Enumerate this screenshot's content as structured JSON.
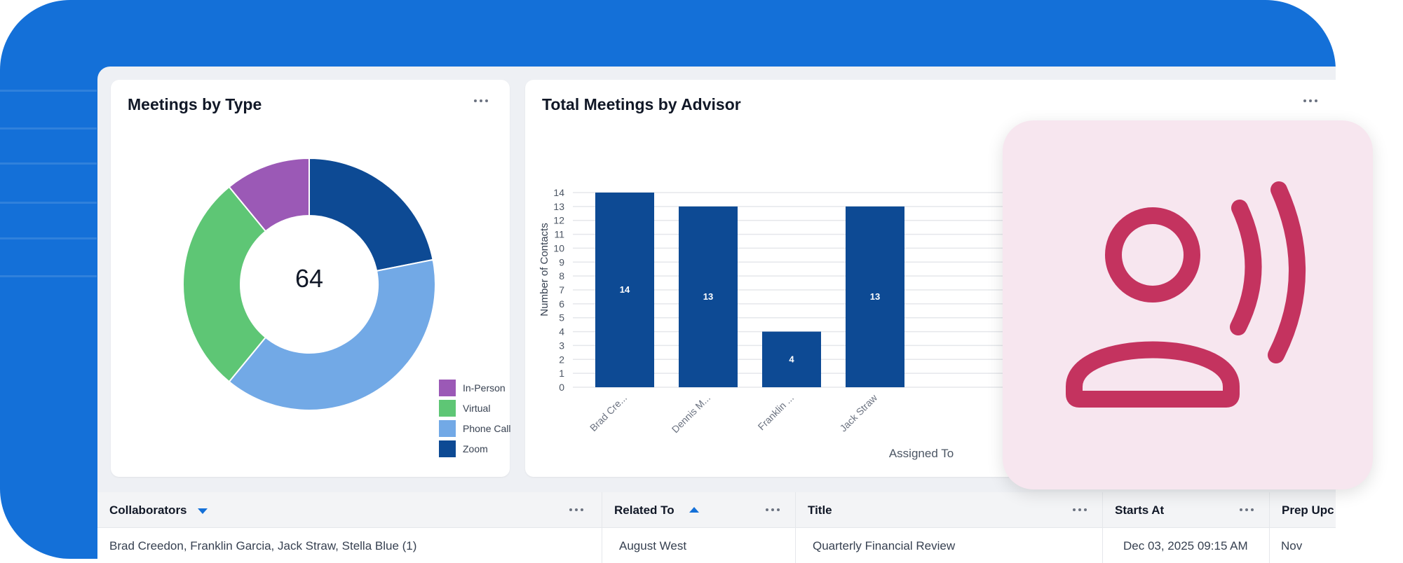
{
  "colors": {
    "brand_blue": "#1470d8",
    "bar_blue": "#0d4a94",
    "accent_pink": "#c4335f"
  },
  "meetings_by_type": {
    "title": "Meetings by Type",
    "total": "64",
    "menu_icon": "more-horizontal-icon"
  },
  "advisor_chart": {
    "title": "Total Meetings by Advisor",
    "menu_icon": "more-horizontal-icon"
  },
  "chart_data": [
    {
      "type": "pie",
      "title": "Meetings by Type",
      "center_label": "64",
      "categories": [
        "In-Person",
        "Virtual",
        "Phone Call",
        "Zoom"
      ],
      "values": [
        7,
        18,
        25,
        14
      ],
      "colors": [
        "#9b59b6",
        "#5ec675",
        "#72a9e6",
        "#0d4a94"
      ],
      "legend_position": "bottom-right"
    },
    {
      "type": "bar",
      "title": "Total Meetings by Advisor",
      "categories": [
        "Brad Cre...",
        "Dennis M...",
        "Franklin ...",
        "Jack Straw"
      ],
      "values": [
        14,
        13,
        4,
        13
      ],
      "data_labels": [
        "14",
        "13",
        "4",
        "13"
      ],
      "xlabel": "Assigned To",
      "ylabel": "Number of Contacts",
      "ylim": [
        0,
        14
      ],
      "yticks": [
        "0",
        "1",
        "2",
        "3",
        "4",
        "5",
        "6",
        "7",
        "8",
        "9",
        "10",
        "11",
        "12",
        "13",
        "14"
      ],
      "grid": true
    }
  ],
  "table": {
    "columns": [
      {
        "label": "Collaborators",
        "sort": "desc"
      },
      {
        "label": "Related To",
        "sort": "asc"
      },
      {
        "label": "Title",
        "sort": ""
      },
      {
        "label": "Starts At",
        "sort": ""
      },
      {
        "label": "Prep Upc",
        "sort": ""
      }
    ],
    "rows": [
      {
        "collaborators": "Brad Creedon, Franklin Garcia, Jack Straw, Stella Blue (1)",
        "related_to": "August West",
        "title": "Quarterly Financial Review",
        "starts_at": "Dec 03, 2025 09:15 AM",
        "prep": "Nov"
      }
    ]
  },
  "overlay": {
    "icon": "user-voice-icon"
  }
}
